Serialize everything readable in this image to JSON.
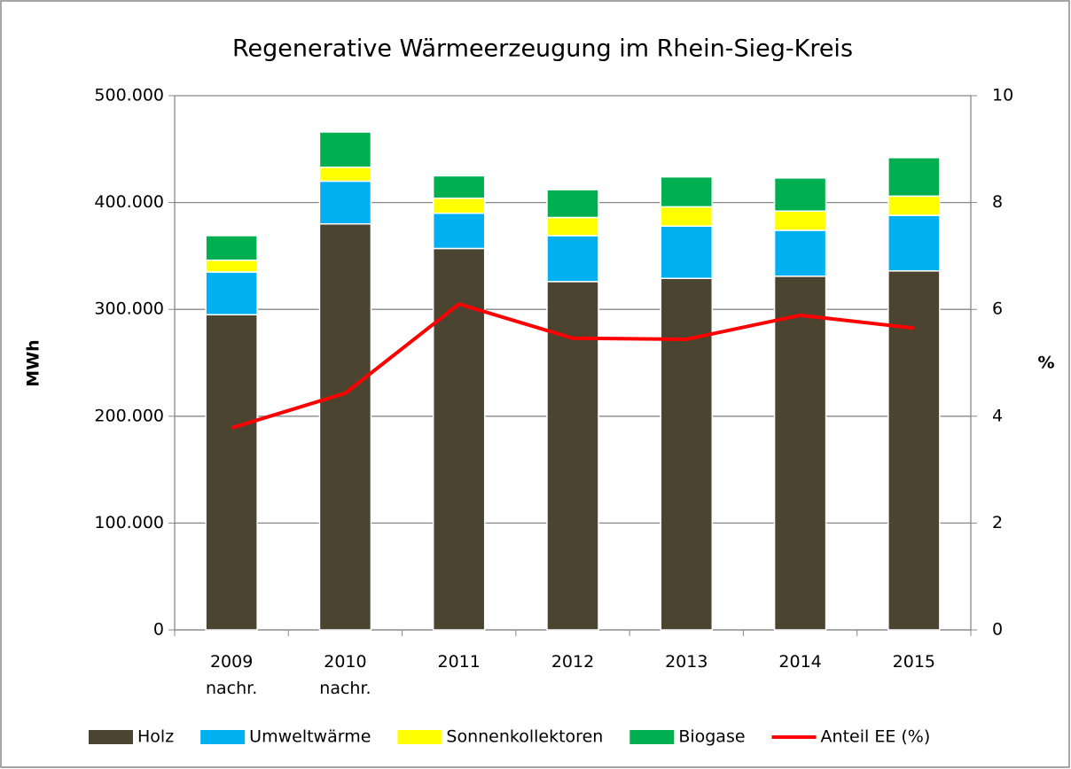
{
  "chart_data": {
    "type": "bar",
    "title": "Regenerative Wärmeerzeugung im Rhein-Sieg-Kreis",
    "ylabel": "MWh",
    "y2label": "%",
    "stacked": true,
    "categories": [
      "2009 nachr.",
      "2010 nachr.",
      "2011",
      "2012",
      "2013",
      "2014",
      "2015"
    ],
    "series": [
      {
        "name": "Holz",
        "color": "#4b4430",
        "values": [
          295000,
          380000,
          357000,
          326000,
          329000,
          331000,
          336000
        ]
      },
      {
        "name": "Umweltwärme",
        "color": "#00b0f0",
        "values": [
          40000,
          40000,
          33000,
          43000,
          49000,
          43000,
          52000
        ]
      },
      {
        "name": "Sonnenkollektoren",
        "color": "#ffff00",
        "values": [
          11000,
          13000,
          14000,
          17000,
          18000,
          18000,
          18000
        ]
      },
      {
        "name": "Biogase",
        "color": "#00b050",
        "values": [
          23000,
          33000,
          21000,
          26000,
          28000,
          31000,
          36000
        ]
      },
      {
        "name": "Anteil EE (%)",
        "color": "#ff0000",
        "type": "line",
        "axis": "y2",
        "values": [
          3.78,
          4.43,
          6.1,
          5.46,
          5.44,
          5.89,
          5.65
        ]
      }
    ],
    "ylim": [
      0,
      500000
    ],
    "yticks": [
      0,
      {
        "value": 100000,
        "label": "100.000"
      },
      {
        "value": 200000,
        "label": "200.000"
      },
      {
        "value": 300000,
        "label": "300.000"
      },
      {
        "value": 400000,
        "label": "400.000"
      },
      {
        "value": 500000,
        "label": "500.000"
      }
    ],
    "y2lim": [
      0,
      10
    ],
    "y2ticks": [
      0,
      2,
      4,
      6,
      8,
      10
    ],
    "grid": true,
    "legend": "bottom"
  }
}
